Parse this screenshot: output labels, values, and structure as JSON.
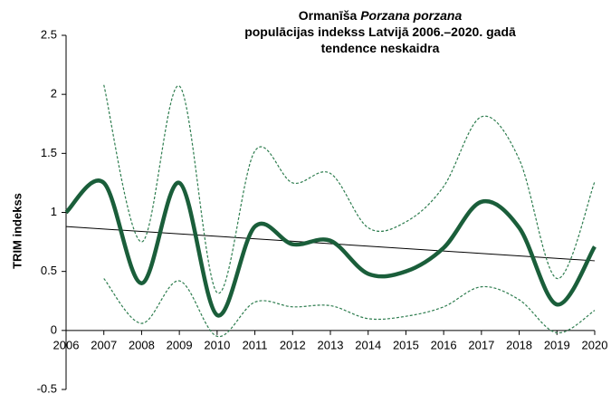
{
  "chart_data": {
    "type": "line",
    "title_lines": [
      [
        "Ormanīša ",
        "Porzana porzana"
      ],
      [
        "populācijas indekss Latvijā 2006.–2020. gadā"
      ],
      [
        "tendence neskaidra"
      ]
    ],
    "y_label": "TRIM indekss",
    "x": [
      2006,
      2007,
      2008,
      2009,
      2010,
      2011,
      2012,
      2013,
      2014,
      2015,
      2016,
      2017,
      2018,
      2019,
      2020
    ],
    "series": [
      {
        "color": "#1a5e3a",
        "style": "solid",
        "width": 4.5,
        "values": [
          1.0,
          1.25,
          0.4,
          1.25,
          0.13,
          0.88,
          0.73,
          0.76,
          0.48,
          0.5,
          0.7,
          1.09,
          0.87,
          0.22,
          0.71
        ]
      },
      {
        "color": "#2e7d4f",
        "style": "dashed",
        "width": 1.2,
        "values": [
          null,
          2.08,
          0.75,
          2.07,
          0.32,
          1.52,
          1.25,
          1.33,
          0.87,
          0.92,
          1.22,
          1.81,
          1.45,
          0.44,
          1.26
        ]
      },
      {
        "color": "#2e7d4f",
        "style": "dashed",
        "width": 1.2,
        "values": [
          null,
          0.44,
          0.06,
          0.42,
          -0.05,
          0.24,
          0.2,
          0.21,
          0.1,
          0.12,
          0.2,
          0.37,
          0.26,
          -0.02,
          0.17
        ]
      }
    ],
    "trend": {
      "color": "#000000",
      "x": [
        2006,
        2020
      ],
      "values": [
        0.88,
        0.59
      ]
    },
    "xlim": [
      2006,
      2020
    ],
    "xticks": [
      2006,
      2007,
      2008,
      2009,
      2010,
      2011,
      2012,
      2013,
      2014,
      2015,
      2016,
      2017,
      2018,
      2019,
      2020
    ],
    "ylim": [
      -0.5,
      2.5
    ],
    "yticks": [
      -0.5,
      0,
      0.5,
      1,
      1.5,
      2,
      2.5
    ]
  }
}
